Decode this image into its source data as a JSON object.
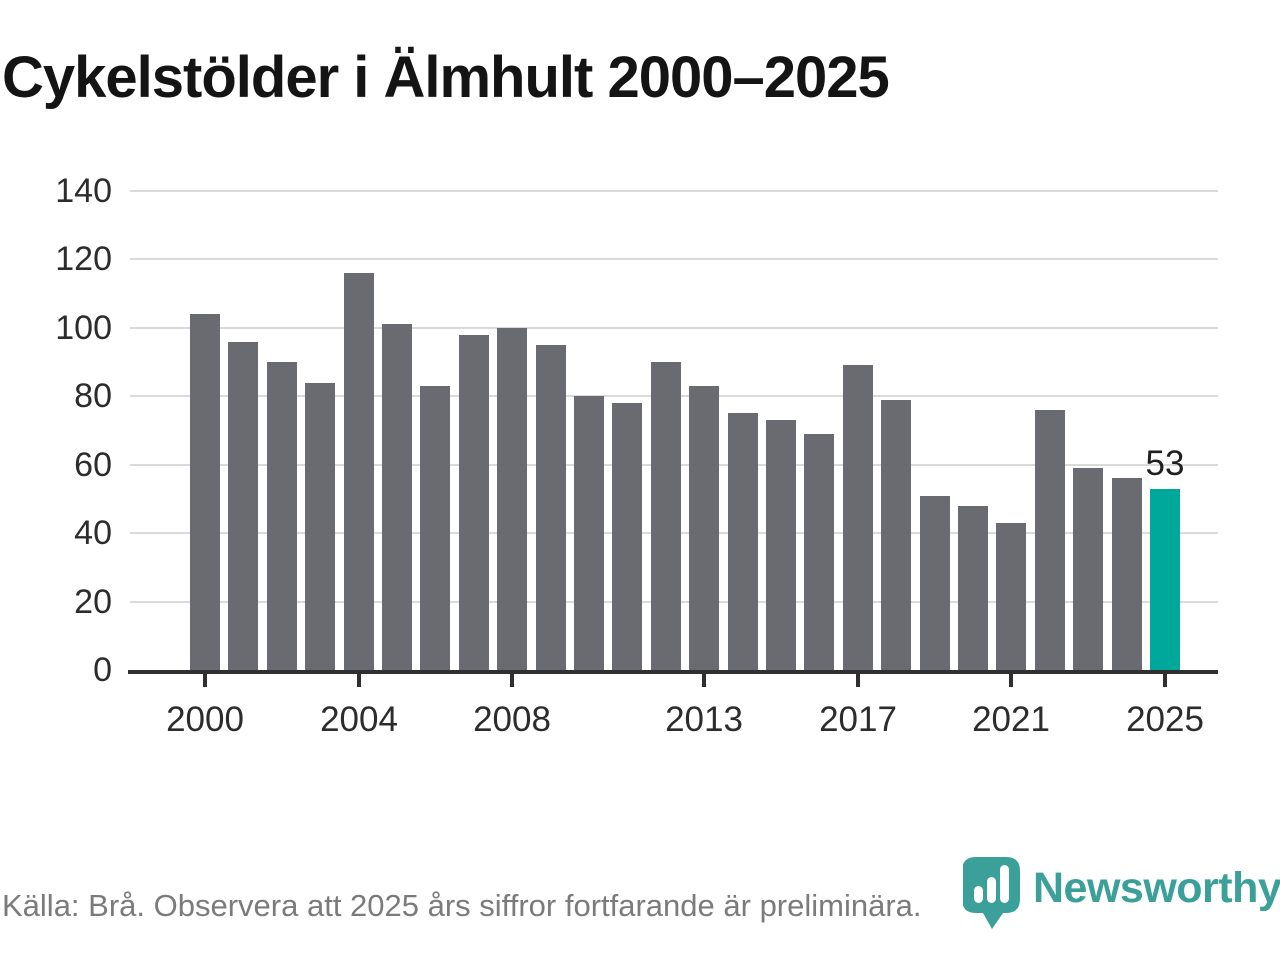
{
  "title": "Cykelstölder i Älmhult 2000–2025",
  "chart_data": {
    "type": "bar",
    "title": "Cykelstölder i Älmhult 2000–2025",
    "categories": [
      2000,
      2001,
      2002,
      2003,
      2004,
      2005,
      2006,
      2007,
      2008,
      2009,
      2010,
      2011,
      2012,
      2013,
      2014,
      2015,
      2016,
      2017,
      2018,
      2019,
      2020,
      2021,
      2022,
      2023,
      2024,
      2025
    ],
    "values": [
      104,
      96,
      90,
      84,
      116,
      101,
      83,
      98,
      100,
      95,
      80,
      78,
      90,
      83,
      75,
      73,
      69,
      89,
      79,
      51,
      48,
      43,
      76,
      59,
      56,
      53
    ],
    "highlight_index": 25,
    "highlight_label": "53",
    "bar_color": "#6a6a71",
    "highlight_color": "#00a79b",
    "xlabel": "",
    "ylabel": "",
    "ylim": [
      0,
      140
    ],
    "yticks": [
      0,
      20,
      40,
      60,
      80,
      100,
      120,
      140
    ],
    "xtick_years": [
      2000,
      2004,
      2008,
      2013,
      2017,
      2021,
      2025
    ],
    "grid": true,
    "gridline_color": "#dadada",
    "axis_color": "#2f2f2f",
    "legend": "none"
  },
  "footer": {
    "source_text": "Källa: Brå. Observera att 2025 års siffror fortfarande är preliminära.",
    "logo_text": "Newsworthy",
    "logo_color": "#3aa099"
  }
}
